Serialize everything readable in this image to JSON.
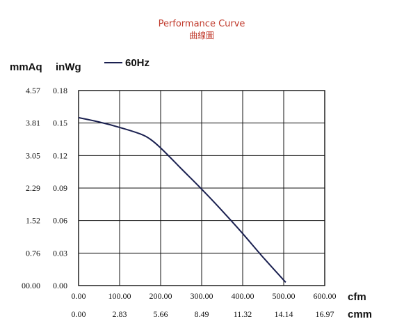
{
  "chart_data": {
    "type": "line",
    "title": "Performance Curve",
    "subtitle": "曲線圖",
    "y_unit_primary": "mmAq",
    "y_unit_secondary": "inWg",
    "x_unit_primary": "cfm",
    "x_unit_secondary": "cmm",
    "xlim": [
      0,
      600
    ],
    "ylim": [
      0,
      0.18
    ],
    "grid": true,
    "legend_position": "top-left",
    "x_tick_labels": [
      "0.00",
      "100.00",
      "200.00",
      "300.00",
      "400.00",
      "500.00",
      "600.00"
    ],
    "x2_tick_labels": [
      "0.00",
      "2.83",
      "5.66",
      "8.49",
      "11.32",
      "14.14",
      "16.97"
    ],
    "y_tick_labels": [
      "0.00",
      "0.03",
      "0.06",
      "0.09",
      "0.12",
      "0.15",
      "0.18"
    ],
    "y2_tick_labels": [
      "00.00",
      "0.76",
      "1.52",
      "2.29",
      "3.05",
      "3.81",
      "4.57"
    ],
    "series": [
      {
        "name": "60Hz",
        "color": "#1a2050",
        "x": [
          0,
          50,
          100,
          150,
          175,
          200,
          250,
          300,
          350,
          400,
          450,
          505
        ],
        "y": [
          0.155,
          0.151,
          0.146,
          0.14,
          0.135,
          0.127,
          0.108,
          0.089,
          0.069,
          0.048,
          0.026,
          0.003
        ]
      }
    ]
  }
}
